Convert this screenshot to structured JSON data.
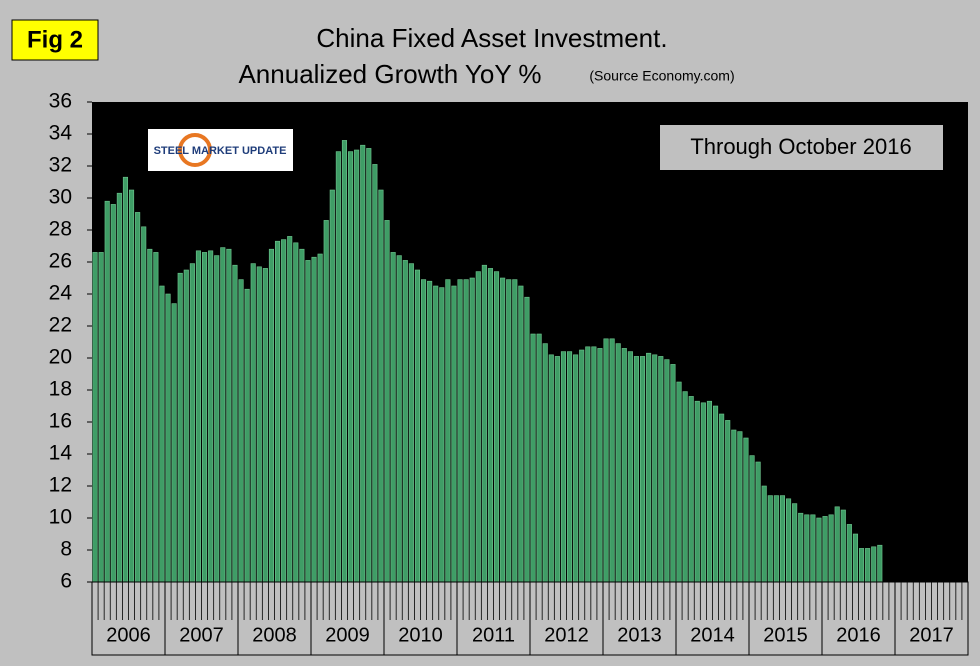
{
  "chart_data": {
    "type": "bar",
    "badge": "Fig 2",
    "title": "China Fixed Asset Investment.",
    "subtitle": "Annualized Growth YoY %",
    "source": "(Source Economy.com)",
    "annotation": "Through October 2016",
    "logo": "STEEL MARKET UPDATE",
    "color": "#3f9d66",
    "categories": [
      "2006",
      "2007",
      "2008",
      "2009",
      "2010",
      "2011",
      "2012",
      "2013",
      "2014",
      "2015",
      "2016",
      "2017"
    ],
    "values": [
      [
        26.6,
        26.6,
        29.8,
        29.6,
        30.3,
        31.3,
        30.5,
        29.1,
        28.2,
        26.8,
        26.6,
        24.5
      ],
      [
        24.0,
        23.4,
        25.3,
        25.5,
        25.9,
        26.7,
        26.6,
        26.7,
        26.4,
        26.9,
        26.8,
        25.8
      ],
      [
        24.9,
        24.3,
        25.9,
        25.7,
        25.6,
        26.8,
        27.3,
        27.4,
        27.6,
        27.2,
        26.8,
        26.1
      ],
      [
        26.3,
        26.5,
        28.6,
        30.5,
        32.9,
        33.6,
        32.9,
        33.0,
        33.3,
        33.1,
        32.1,
        30.5
      ],
      [
        28.6,
        26.6,
        26.4,
        26.1,
        25.9,
        25.5,
        24.9,
        24.8,
        24.5,
        24.4,
        24.9,
        24.5
      ],
      [
        24.9,
        24.9,
        25.0,
        25.4,
        25.8,
        25.6,
        25.4,
        25.0,
        24.9,
        24.9,
        24.5,
        23.8
      ],
      [
        21.5,
        21.5,
        20.9,
        20.2,
        20.1,
        20.4,
        20.4,
        20.2,
        20.5,
        20.7,
        20.7,
        20.6
      ],
      [
        21.2,
        21.2,
        20.9,
        20.6,
        20.4,
        20.1,
        20.1,
        20.3,
        20.2,
        20.1,
        19.9,
        19.6
      ],
      [
        18.5,
        17.9,
        17.6,
        17.3,
        17.2,
        17.3,
        17.0,
        16.5,
        16.1,
        15.5,
        15.4,
        15.0
      ],
      [
        13.9,
        13.5,
        12.0,
        11.4,
        11.4,
        11.4,
        11.2,
        10.9,
        10.3,
        10.2,
        10.2,
        10.0
      ],
      [
        10.1,
        10.2,
        10.7,
        10.5,
        9.6,
        9.0,
        8.1,
        8.1,
        8.2,
        8.3
      ],
      []
    ],
    "ylim": [
      6,
      36
    ],
    "yticks": [
      6,
      8,
      10,
      12,
      14,
      16,
      18,
      20,
      22,
      24,
      26,
      28,
      30,
      32,
      34,
      36
    ]
  }
}
